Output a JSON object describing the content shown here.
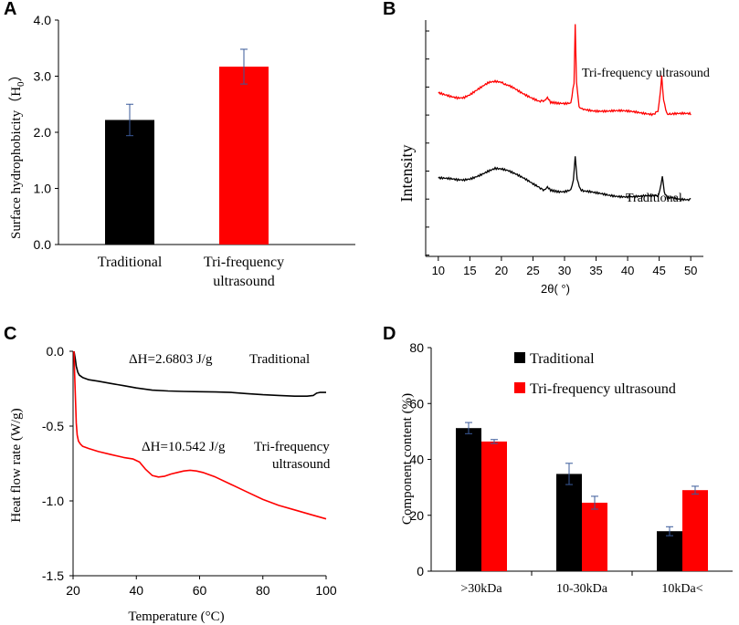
{
  "panels": {
    "A": "A",
    "B": "B",
    "C": "C",
    "D": "D"
  },
  "colors": {
    "traditional": "#000000",
    "ultrasound": "#ff0000",
    "error_bar_a": "#3a5a9a",
    "error_bar_d": "#3a5a9a"
  },
  "chart_data": [
    {
      "id": "A",
      "type": "bar",
      "title": "",
      "ylabel_main": "Surface hydrophobicity（H",
      "ylabel_sub": "0",
      "ylabel_end": "）",
      "ylim": [
        0,
        4
      ],
      "yticks": [
        "0.0",
        "1.0",
        "2.0",
        "3.0",
        "4.0"
      ],
      "categories": [
        "Traditional",
        "Tri-frequency"
      ],
      "category_line2": [
        "",
        "ultrasound"
      ],
      "values": [
        2.22,
        3.17
      ],
      "errors": [
        0.28,
        0.31
      ],
      "colors": [
        "#000000",
        "#ff0000"
      ]
    },
    {
      "id": "B",
      "type": "line",
      "title": "",
      "ylabel": "Intensity",
      "xlabel": "2θ( °)",
      "xlim": [
        8,
        52
      ],
      "xticks": [
        "10",
        "15",
        "20",
        "25",
        "30",
        "35",
        "40",
        "45",
        "50"
      ],
      "series": [
        {
          "name": "Tri-frequency ultrasound",
          "color": "#ff0000",
          "x": [
            10,
            11,
            12,
            13,
            14,
            15,
            16,
            17,
            18,
            19,
            20,
            20.8,
            21,
            22,
            23,
            24,
            25,
            26,
            26.8,
            27.3,
            27.8,
            29,
            30,
            31,
            31.5,
            31.7,
            31.9,
            32.3,
            33,
            35,
            37,
            40,
            42,
            44,
            44.8,
            45.2,
            45.4,
            45.7,
            46.2,
            47,
            48,
            49,
            50
          ],
          "y": [
            0.705,
            0.7,
            0.695,
            0.69,
            0.69,
            0.7,
            0.715,
            0.73,
            0.745,
            0.75,
            0.748,
            0.745,
            0.74,
            0.73,
            0.715,
            0.7,
            0.685,
            0.67,
            0.665,
            0.68,
            0.66,
            0.655,
            0.655,
            0.66,
            0.75,
            1.0,
            0.75,
            0.65,
            0.64,
            0.632,
            0.626,
            0.622,
            0.62,
            0.618,
            0.63,
            0.72,
            0.78,
            0.68,
            0.622,
            0.616,
            0.614,
            0.612,
            0.61
          ]
        },
        {
          "name": "Traditional",
          "color": "#000000",
          "x": [
            10,
            11,
            12,
            13,
            14,
            15,
            16,
            17,
            18,
            19,
            20,
            21,
            22,
            23,
            24,
            25,
            26,
            26.8,
            27.3,
            27.8,
            29,
            30,
            31,
            31.4,
            31.7,
            32.0,
            32.5,
            33,
            35,
            37,
            40,
            42,
            44,
            44.9,
            45.3,
            45.5,
            45.8,
            46.3,
            47,
            48,
            49,
            50
          ],
          "y": [
            0.34,
            0.335,
            0.33,
            0.325,
            0.325,
            0.332,
            0.345,
            0.36,
            0.375,
            0.385,
            0.38,
            0.37,
            0.355,
            0.34,
            0.325,
            0.31,
            0.298,
            0.292,
            0.305,
            0.29,
            0.285,
            0.283,
            0.288,
            0.33,
            0.44,
            0.33,
            0.285,
            0.277,
            0.27,
            0.266,
            0.262,
            0.259,
            0.257,
            0.265,
            0.31,
            0.34,
            0.28,
            0.257,
            0.254,
            0.252,
            0.251,
            0.25
          ]
        }
      ],
      "annotations": [
        "Tri-frequency ultrasound",
        "Traditional"
      ]
    },
    {
      "id": "C",
      "type": "line",
      "title": "",
      "ylabel": "Heat flow rate  (W/g)",
      "xlabel": "Temperature (°C)",
      "xlim": [
        20,
        100
      ],
      "ylim": [
        -1.5,
        0.0
      ],
      "xticks": [
        "20",
        "40",
        "60",
        "80",
        "100"
      ],
      "yticks": [
        "0.0",
        "-0.5",
        "-1.0",
        "-1.5"
      ],
      "series": [
        {
          "name": "Traditional",
          "color": "#000000",
          "x": [
            20.3,
            20.7,
            21.0,
            21.5,
            22,
            23,
            25,
            28,
            32,
            36,
            40,
            45,
            50,
            55,
            60,
            65,
            70,
            75,
            80,
            85,
            90,
            94,
            96,
            97,
            98,
            100
          ],
          "y": [
            0.0,
            -0.05,
            -0.1,
            -0.14,
            -0.16,
            -0.175,
            -0.19,
            -0.2,
            -0.215,
            -0.23,
            -0.245,
            -0.26,
            -0.265,
            -0.268,
            -0.27,
            -0.272,
            -0.275,
            -0.283,
            -0.29,
            -0.295,
            -0.3,
            -0.3,
            -0.295,
            -0.28,
            -0.275,
            -0.275
          ]
        },
        {
          "name": "Tri-frequency ultrasound",
          "color": "#ff0000",
          "x": [
            20.3,
            20.5,
            20.8,
            21.0,
            21.3,
            21.7,
            22.3,
            23,
            25,
            28,
            32,
            36,
            39,
            41,
            43,
            45,
            47,
            49,
            51,
            53,
            55,
            57,
            59,
            61,
            63,
            65,
            70,
            75,
            80,
            85,
            90,
            95,
            100
          ],
          "y": [
            0.0,
            -0.15,
            -0.35,
            -0.48,
            -0.56,
            -0.6,
            -0.62,
            -0.635,
            -0.65,
            -0.67,
            -0.69,
            -0.71,
            -0.72,
            -0.74,
            -0.79,
            -0.83,
            -0.84,
            -0.835,
            -0.82,
            -0.81,
            -0.8,
            -0.795,
            -0.8,
            -0.81,
            -0.825,
            -0.84,
            -0.89,
            -0.94,
            -0.99,
            -1.03,
            -1.06,
            -1.09,
            -1.12
          ]
        }
      ],
      "annotations": {
        "trad_dh": "ΔH=2.6803  J/g",
        "trad_label": "Traditional",
        "us_dh": "ΔH=10.542  J/g",
        "us_label_1": "Tri-frequency",
        "us_label_2": "ultrasound"
      }
    },
    {
      "id": "D",
      "type": "bar",
      "title": "",
      "ylabel": "Component content  (%)",
      "ylim": [
        0,
        80
      ],
      "yticks": [
        "0",
        "20",
        "40",
        "60",
        "80"
      ],
      "categories": [
        ">30kDa",
        "10-30kDa",
        "10kDa<"
      ],
      "series": [
        {
          "name": "Traditional",
          "color": "#000000",
          "values": [
            51.2,
            34.8,
            14.3
          ],
          "errors": [
            2.0,
            3.8,
            1.6
          ]
        },
        {
          "name": "Tri-frequency ultrasound",
          "color": "#ff0000",
          "values": [
            46.4,
            24.5,
            29.0
          ],
          "errors": [
            0.7,
            2.3,
            1.4
          ]
        }
      ],
      "legend_position": "top-right"
    }
  ]
}
